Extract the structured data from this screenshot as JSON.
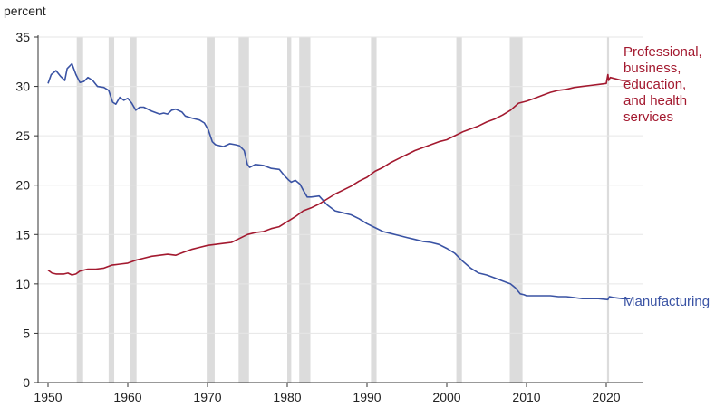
{
  "chart_data": {
    "type": "line",
    "ylabel": "percent",
    "xlim": [
      1948.5,
      2024.5
    ],
    "ylim": [
      0,
      35
    ],
    "x_ticks": [
      1950,
      1960,
      1970,
      1980,
      1990,
      2000,
      2010,
      2020
    ],
    "y_ticks": [
      0,
      5,
      10,
      15,
      20,
      25,
      30,
      35
    ],
    "grid": "horizontal",
    "recessions": [
      [
        1953.6,
        1954.4
      ],
      [
        1957.6,
        1958.3
      ],
      [
        1960.3,
        1961.1
      ],
      [
        1969.9,
        1970.9
      ],
      [
        1973.9,
        1975.2
      ],
      [
        1980.0,
        1980.5
      ],
      [
        1981.5,
        1982.9
      ],
      [
        1990.5,
        1991.2
      ],
      [
        2001.2,
        2001.9
      ],
      [
        2007.9,
        2009.5
      ],
      [
        2020.1,
        2020.35
      ]
    ],
    "series": [
      {
        "name": "Manufacturing",
        "color": "#3a53a4",
        "x": [
          1950,
          1950.4,
          1951,
          1951.6,
          1952.1,
          1952.4,
          1953,
          1953.5,
          1954,
          1954.5,
          1955,
          1955.6,
          1956.2,
          1957,
          1957.6,
          1958.1,
          1958.5,
          1959,
          1959.5,
          1960,
          1960.5,
          1961,
          1961.5,
          1962,
          1963,
          1964,
          1964.5,
          1965,
          1965.5,
          1966,
          1966.8,
          1967.2,
          1968,
          1969,
          1969.6,
          1970.1,
          1970.6,
          1971,
          1972,
          1972.8,
          1973.5,
          1974,
          1974.6,
          1975,
          1975.3,
          1976,
          1977,
          1978,
          1979,
          1979.6,
          1980.2,
          1980.5,
          1981,
          1981.6,
          1982,
          1982.5,
          1983,
          1984,
          1985,
          1986,
          1987,
          1988,
          1989,
          1990,
          1991,
          1992,
          1993,
          1994,
          1995,
          1996,
          1997,
          1998,
          1999,
          2000,
          2001,
          2002,
          2003,
          2004,
          2005,
          2006,
          2007,
          2008,
          2008.6,
          2009.2,
          2009.7,
          2010,
          2011,
          2012,
          2013,
          2014,
          2015,
          2016,
          2017,
          2018,
          2019,
          2020.2,
          2020.4,
          2021,
          2022,
          2023
        ],
        "values": [
          30.3,
          31.2,
          31.6,
          31.0,
          30.6,
          31.8,
          32.3,
          31.2,
          30.4,
          30.5,
          30.9,
          30.6,
          30.0,
          29.9,
          29.6,
          28.4,
          28.2,
          28.9,
          28.6,
          28.8,
          28.3,
          27.6,
          27.9,
          27.9,
          27.5,
          27.2,
          27.3,
          27.2,
          27.6,
          27.7,
          27.4,
          27.0,
          26.8,
          26.6,
          26.3,
          25.6,
          24.4,
          24.1,
          23.9,
          24.2,
          24.1,
          24.0,
          23.5,
          22.1,
          21.8,
          22.1,
          22.0,
          21.7,
          21.6,
          21.0,
          20.5,
          20.3,
          20.5,
          20.1,
          19.5,
          18.8,
          18.8,
          18.9,
          18.0,
          17.4,
          17.2,
          17.0,
          16.6,
          16.1,
          15.7,
          15.3,
          15.1,
          14.9,
          14.7,
          14.5,
          14.3,
          14.2,
          14.0,
          13.6,
          13.1,
          12.3,
          11.6,
          11.1,
          10.9,
          10.6,
          10.3,
          10.0,
          9.6,
          9.0,
          8.9,
          8.8,
          8.8,
          8.8,
          8.8,
          8.7,
          8.7,
          8.6,
          8.5,
          8.5,
          8.5,
          8.4,
          8.7,
          8.6,
          8.5,
          8.5
        ]
      },
      {
        "name": "Professional, business, education, and health services",
        "color": "#a3192f",
        "x": [
          1950,
          1950.5,
          1951,
          1951.5,
          1952,
          1952.5,
          1953,
          1953.5,
          1954,
          1955,
          1956,
          1957,
          1958,
          1959,
          1960,
          1961,
          1962,
          1963,
          1964,
          1965,
          1966,
          1967,
          1968,
          1969,
          1970,
          1971,
          1972,
          1973,
          1974,
          1975,
          1976,
          1977,
          1978,
          1979,
          1980,
          1981,
          1982,
          1983,
          1984,
          1985,
          1986,
          1987,
          1988,
          1989,
          1990,
          1991,
          1992,
          1993,
          1994,
          1995,
          1996,
          1997,
          1998,
          1999,
          2000,
          2001,
          2002,
          2003,
          2004,
          2005,
          2006,
          2007,
          2008,
          2009,
          2010,
          2011,
          2012,
          2013,
          2014,
          2015,
          2016,
          2017,
          2018,
          2019,
          2020,
          2020.2,
          2020.3,
          2020.5,
          2021,
          2022,
          2023
        ],
        "values": [
          11.4,
          11.1,
          11.0,
          11.0,
          11.0,
          11.1,
          10.9,
          11.0,
          11.3,
          11.5,
          11.5,
          11.6,
          11.9,
          12.0,
          12.1,
          12.4,
          12.6,
          12.8,
          12.9,
          13.0,
          12.9,
          13.2,
          13.5,
          13.7,
          13.9,
          14.0,
          14.1,
          14.2,
          14.6,
          15.0,
          15.2,
          15.3,
          15.6,
          15.8,
          16.3,
          16.8,
          17.4,
          17.7,
          18.1,
          18.6,
          19.1,
          19.5,
          19.9,
          20.4,
          20.8,
          21.4,
          21.8,
          22.3,
          22.7,
          23.1,
          23.5,
          23.8,
          24.1,
          24.4,
          24.6,
          25.0,
          25.4,
          25.7,
          26.0,
          26.4,
          26.7,
          27.1,
          27.6,
          28.3,
          28.5,
          28.8,
          29.1,
          29.4,
          29.6,
          29.7,
          29.9,
          30.0,
          30.1,
          30.2,
          30.3,
          31.2,
          30.6,
          30.9,
          30.8,
          30.6,
          30.6
        ]
      }
    ],
    "labels": {
      "professional": [
        "Professional,",
        "business,",
        "education,",
        "and health",
        "services"
      ],
      "manufacturing": "Manufacturing"
    }
  }
}
